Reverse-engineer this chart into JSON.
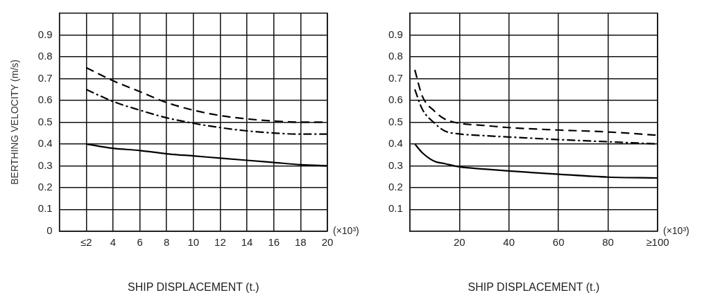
{
  "chart_data": [
    {
      "type": "line",
      "ylabel": "BERTHING VELOCITY (m/s)",
      "xlabel": "SHIP DISPLACEMENT (t.)",
      "annotations": [
        "(×10³)"
      ],
      "xlim": [
        0,
        20
      ],
      "xticks": [
        {
          "value": 2,
          "label": "≤2"
        },
        4,
        6,
        8,
        10,
        12,
        14,
        16,
        18,
        20
      ],
      "ylim": [
        0,
        1
      ],
      "yticks": [
        0,
        0.1,
        0.2,
        0.3,
        0.4,
        0.5,
        0.6,
        0.7,
        0.8,
        0.9
      ],
      "grid": true,
      "legend": false,
      "marker": "none",
      "x": [
        2,
        4,
        6,
        8,
        10,
        12,
        14,
        16,
        18,
        20
      ],
      "series": [
        {
          "color": "#000000",
          "line_style": "dashed",
          "values": [
            0.75,
            0.69,
            0.64,
            0.59,
            0.555,
            0.53,
            0.515,
            0.505,
            0.5,
            0.5
          ]
        },
        {
          "color": "#000000",
          "line_style": "dashdot",
          "values": [
            0.65,
            0.595,
            0.555,
            0.52,
            0.495,
            0.475,
            0.46,
            0.45,
            0.445,
            0.445
          ]
        },
        {
          "color": "#000000",
          "line_style": "solid",
          "values": [
            0.4,
            0.38,
            0.37,
            0.355,
            0.345,
            0.335,
            0.325,
            0.315,
            0.305,
            0.3
          ]
        }
      ]
    },
    {
      "type": "line",
      "xlabel": "SHIP DISPLACEMENT (t.)",
      "annotations": [
        "(×10³)"
      ],
      "xlim": [
        0,
        100
      ],
      "xticks": [
        20,
        40,
        60,
        80,
        {
          "value": 100,
          "label": "≥100"
        }
      ],
      "ylim": [
        0,
        1
      ],
      "yticks": [
        0.1,
        0.2,
        0.3,
        0.4,
        0.5,
        0.6,
        0.7,
        0.8,
        0.9
      ],
      "grid": true,
      "legend": false,
      "marker": "none",
      "x": [
        2,
        5,
        10,
        14,
        20,
        30,
        40,
        60,
        80,
        100
      ],
      "series": [
        {
          "color": "#000000",
          "line_style": "dashed",
          "values": [
            0.74,
            0.62,
            0.55,
            0.515,
            0.495,
            0.485,
            0.475,
            0.464,
            0.455,
            0.44
          ]
        },
        {
          "color": "#000000",
          "line_style": "dashdot",
          "values": [
            0.65,
            0.56,
            0.495,
            0.46,
            0.446,
            0.438,
            0.432,
            0.42,
            0.41,
            0.4
          ]
        },
        {
          "color": "#000000",
          "line_style": "solid",
          "values": [
            0.4,
            0.36,
            0.32,
            0.31,
            0.295,
            0.285,
            0.276,
            0.261,
            0.248,
            0.244
          ]
        }
      ]
    }
  ]
}
